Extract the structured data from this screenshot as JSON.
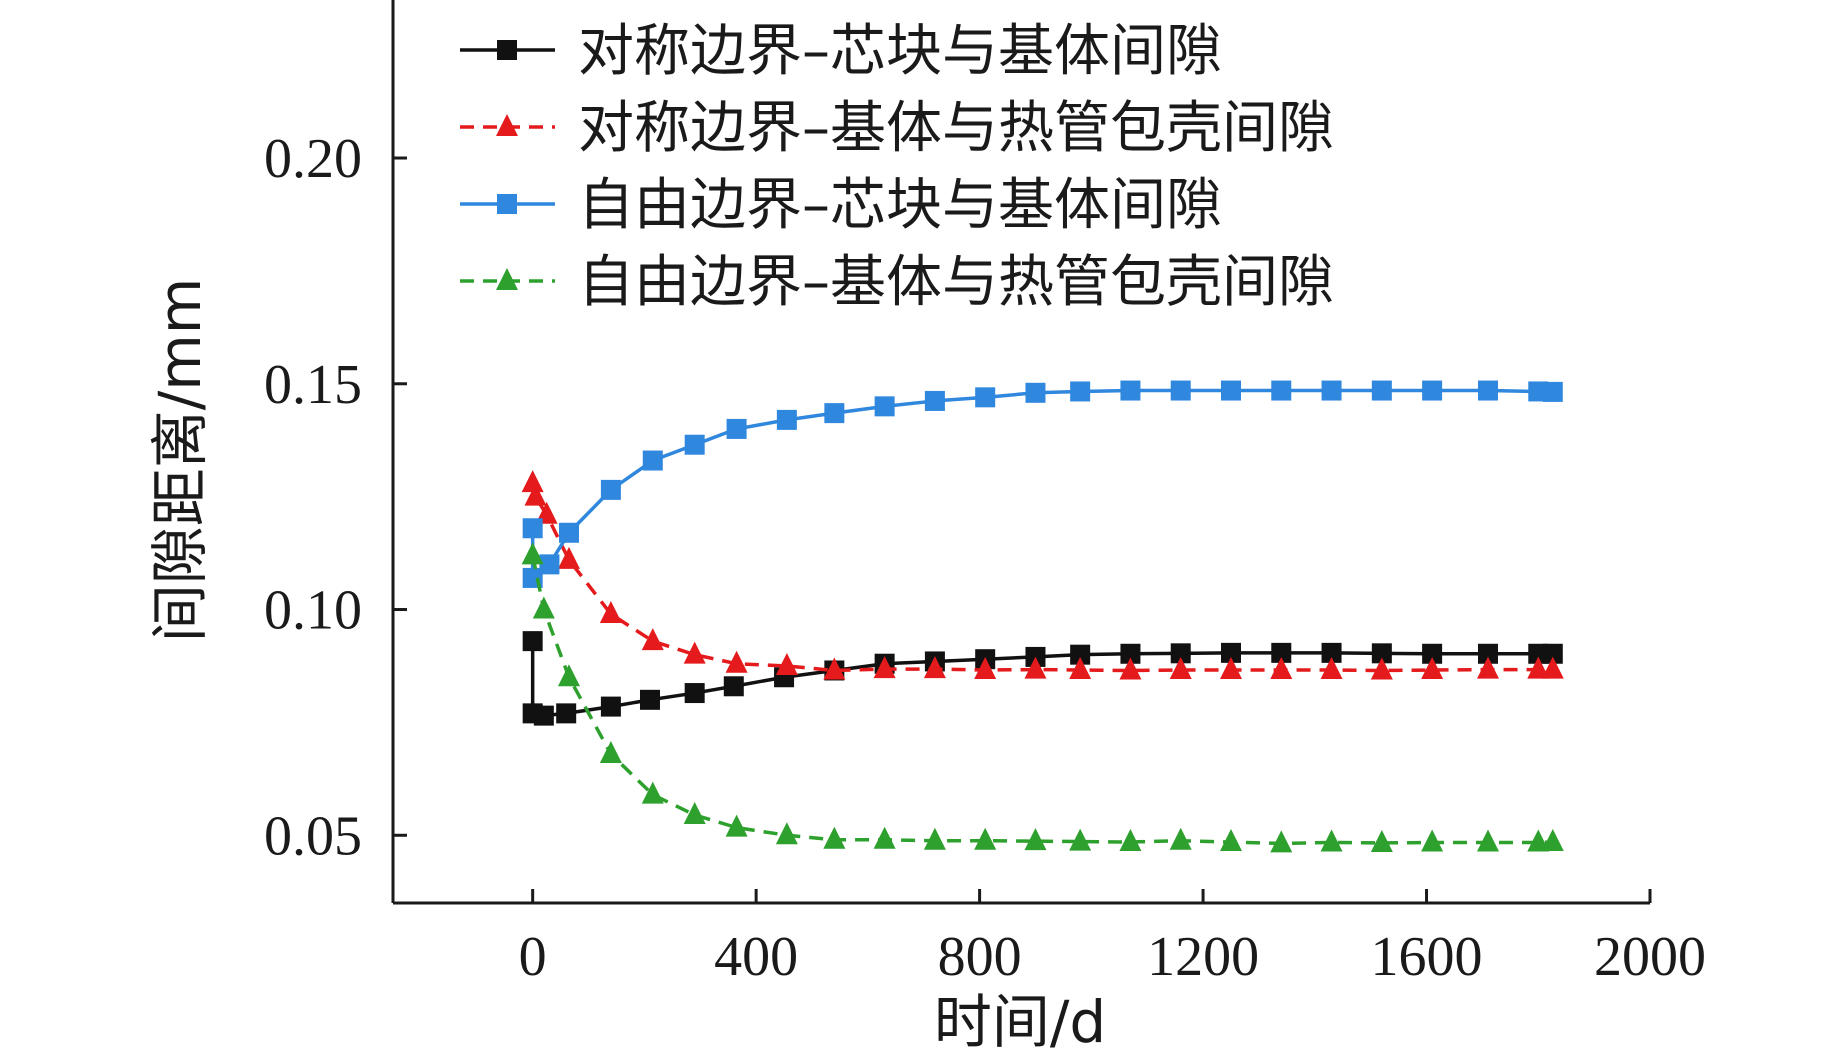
{
  "chart_data": {
    "type": "line",
    "title": "",
    "xlabel": "时间/d",
    "ylabel": "间隙距离/mm",
    "xlim": [
      -250,
      2000
    ],
    "ylim": [
      0.035,
      0.235
    ],
    "xticks": [
      0,
      400,
      800,
      1200,
      1600,
      2000
    ],
    "xtick_labels": [
      "0",
      "400",
      "800",
      "1200",
      "1600",
      "2000"
    ],
    "yticks": [
      0.05,
      0.1,
      0.15,
      0.2
    ],
    "ytick_labels": [
      "0.05",
      "0.10",
      "0.15",
      "0.20"
    ],
    "grid": false,
    "legend_position": "top",
    "series": [
      {
        "name": "对称边界–芯块与基体间隙",
        "color": "#111111",
        "line_style": "solid",
        "marker": "square",
        "x": [
          0,
          0,
          20,
          60,
          140,
          210,
          290,
          360,
          450,
          540,
          630,
          720,
          810,
          900,
          980,
          1070,
          1160,
          1250,
          1340,
          1430,
          1520,
          1610,
          1710,
          1800,
          1826
        ],
        "y": [
          0.093,
          0.077,
          0.0765,
          0.077,
          0.0785,
          0.08,
          0.0815,
          0.083,
          0.085,
          0.0865,
          0.088,
          0.0885,
          0.089,
          0.0895,
          0.09,
          0.0902,
          0.0903,
          0.0904,
          0.0904,
          0.0904,
          0.0903,
          0.0902,
          0.0902,
          0.0902,
          0.0902
        ]
      },
      {
        "name": "对称边界–基体与热管包壳间隙",
        "color": "#e41a1c",
        "line_style": "dashed",
        "marker": "triangle",
        "x": [
          0,
          5,
          25,
          65,
          140,
          215,
          290,
          365,
          455,
          540,
          630,
          720,
          810,
          900,
          980,
          1070,
          1160,
          1250,
          1340,
          1430,
          1520,
          1610,
          1710,
          1800,
          1826
        ],
        "y": [
          0.128,
          0.125,
          0.121,
          0.111,
          0.099,
          0.093,
          0.09,
          0.088,
          0.0875,
          0.0865,
          0.0868,
          0.0868,
          0.0866,
          0.0867,
          0.0866,
          0.0865,
          0.0866,
          0.0866,
          0.0866,
          0.0866,
          0.0865,
          0.0866,
          0.0867,
          0.0867,
          0.0867
        ]
      },
      {
        "name": "自由边界–芯块与基体间隙",
        "color": "#2f87de",
        "line_style": "solid",
        "marker": "square",
        "x": [
          0,
          0,
          30,
          65,
          140,
          215,
          290,
          365,
          455,
          540,
          630,
          720,
          810,
          900,
          980,
          1070,
          1160,
          1250,
          1340,
          1430,
          1520,
          1610,
          1710,
          1800,
          1826
        ],
        "y": [
          0.118,
          0.107,
          0.11,
          0.117,
          0.1265,
          0.133,
          0.1365,
          0.14,
          0.142,
          0.1435,
          0.145,
          0.1462,
          0.147,
          0.148,
          0.1483,
          0.1485,
          0.1485,
          0.1485,
          0.1485,
          0.1485,
          0.1485,
          0.1485,
          0.1485,
          0.1483,
          0.1482
        ]
      },
      {
        "name": "自由边界–基体与热管包壳间隙",
        "color": "#2ea02e",
        "line_style": "dashed",
        "marker": "triangle",
        "x": [
          0,
          20,
          65,
          140,
          215,
          290,
          365,
          455,
          540,
          630,
          720,
          810,
          900,
          980,
          1070,
          1160,
          1250,
          1340,
          1430,
          1520,
          1610,
          1710,
          1800,
          1826
        ],
        "y": [
          0.112,
          0.1,
          0.085,
          0.068,
          0.059,
          0.0545,
          0.0517,
          0.05,
          0.049,
          0.049,
          0.0488,
          0.0488,
          0.0487,
          0.0486,
          0.0485,
          0.0488,
          0.0485,
          0.0482,
          0.0484,
          0.0483,
          0.0484,
          0.0484,
          0.0484,
          0.0485
        ]
      }
    ]
  }
}
